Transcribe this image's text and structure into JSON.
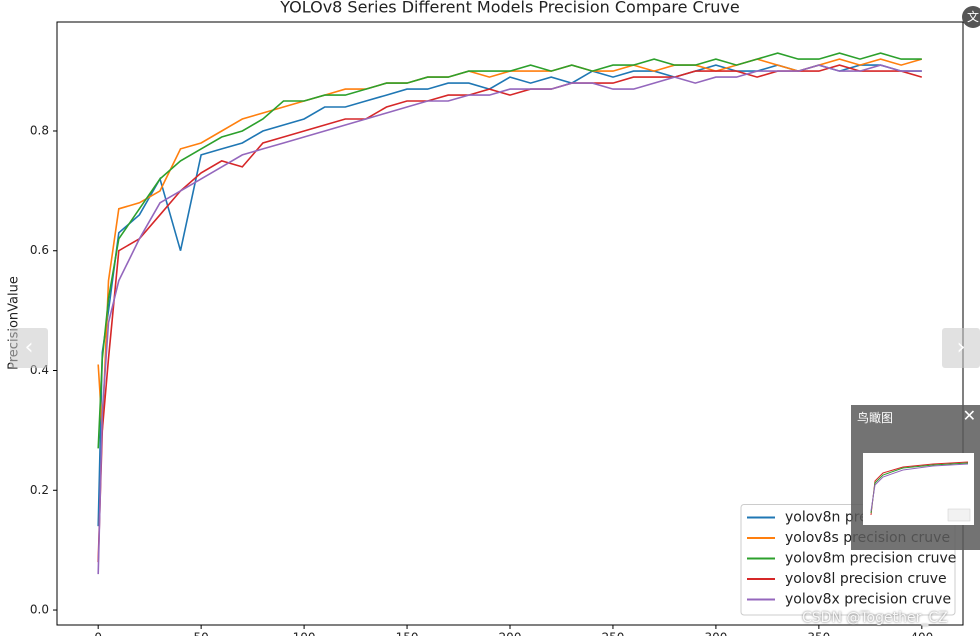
{
  "chart_data": {
    "type": "line",
    "title": "YOLOv8 Series Different Models Precision Compare Cruve",
    "y_label": "PrecisionValue",
    "x": [
      0,
      2,
      5,
      10,
      20,
      30,
      40,
      50,
      60,
      70,
      80,
      90,
      100,
      110,
      120,
      130,
      140,
      150,
      160,
      170,
      180,
      190,
      200,
      210,
      220,
      230,
      240,
      250,
      260,
      270,
      280,
      290,
      300,
      310,
      320,
      330,
      340,
      350,
      360,
      370,
      380,
      390,
      400
    ],
    "series": [
      {
        "name": "yolov8n precision cruve",
        "color": "#1f77b4",
        "values": [
          0.14,
          0.43,
          0.5,
          0.63,
          0.66,
          0.72,
          0.6,
          0.76,
          0.77,
          0.78,
          0.8,
          0.81,
          0.82,
          0.84,
          0.84,
          0.85,
          0.86,
          0.87,
          0.87,
          0.88,
          0.88,
          0.87,
          0.89,
          0.88,
          0.89,
          0.88,
          0.9,
          0.89,
          0.9,
          0.9,
          0.89,
          0.9,
          0.91,
          0.9,
          0.9,
          0.91,
          0.9,
          0.91,
          0.9,
          0.91,
          0.91,
          0.9,
          0.9
        ]
      },
      {
        "name": "yolov8s precision cruve",
        "color": "#ff7f0e",
        "values": [
          0.41,
          0.3,
          0.55,
          0.67,
          0.68,
          0.7,
          0.77,
          0.78,
          0.8,
          0.82,
          0.83,
          0.84,
          0.85,
          0.86,
          0.87,
          0.87,
          0.88,
          0.88,
          0.89,
          0.89,
          0.9,
          0.89,
          0.9,
          0.9,
          0.9,
          0.91,
          0.9,
          0.9,
          0.91,
          0.9,
          0.91,
          0.91,
          0.9,
          0.91,
          0.92,
          0.91,
          0.9,
          0.91,
          0.92,
          0.91,
          0.92,
          0.91,
          0.92
        ]
      },
      {
        "name": "yolov8m precision cruve",
        "color": "#2ca02c",
        "values": [
          0.27,
          0.42,
          0.52,
          0.62,
          0.67,
          0.72,
          0.75,
          0.77,
          0.79,
          0.8,
          0.82,
          0.85,
          0.85,
          0.86,
          0.86,
          0.87,
          0.88,
          0.88,
          0.89,
          0.89,
          0.9,
          0.9,
          0.9,
          0.91,
          0.9,
          0.91,
          0.9,
          0.91,
          0.91,
          0.92,
          0.91,
          0.91,
          0.92,
          0.91,
          0.92,
          0.93,
          0.92,
          0.92,
          0.93,
          0.92,
          0.93,
          0.92,
          0.92
        ]
      },
      {
        "name": "yolov8l precision cruve",
        "color": "#d62728",
        "values": [
          0.08,
          0.3,
          0.42,
          0.6,
          0.62,
          0.66,
          0.7,
          0.73,
          0.75,
          0.74,
          0.78,
          0.79,
          0.8,
          0.81,
          0.82,
          0.82,
          0.84,
          0.85,
          0.85,
          0.86,
          0.86,
          0.87,
          0.86,
          0.87,
          0.87,
          0.88,
          0.88,
          0.88,
          0.89,
          0.89,
          0.89,
          0.9,
          0.9,
          0.9,
          0.89,
          0.9,
          0.9,
          0.9,
          0.91,
          0.9,
          0.9,
          0.9,
          0.89
        ]
      },
      {
        "name": "yolov8x precision cruve",
        "color": "#9467bd",
        "values": [
          0.06,
          0.33,
          0.48,
          0.55,
          0.62,
          0.68,
          0.7,
          0.72,
          0.74,
          0.76,
          0.77,
          0.78,
          0.79,
          0.8,
          0.81,
          0.82,
          0.83,
          0.84,
          0.85,
          0.85,
          0.86,
          0.86,
          0.87,
          0.87,
          0.87,
          0.88,
          0.88,
          0.87,
          0.87,
          0.88,
          0.89,
          0.88,
          0.89,
          0.89,
          0.9,
          0.9,
          0.9,
          0.91,
          0.9,
          0.9,
          0.91,
          0.9,
          0.9
        ]
      }
    ],
    "xlim": [
      -20,
      420
    ],
    "xticks": [
      0,
      50,
      100,
      150,
      200,
      250,
      300,
      350,
      400
    ],
    "ylim": [
      -0.025,
      0.982
    ],
    "yticks": [
      {
        "value": 0,
        "label": "0.0"
      },
      0.2,
      0.4,
      0.6,
      0.8
    ],
    "legend": "lower right"
  },
  "ui": {
    "bird_view_title": "鸟瞰图",
    "watermark": "CSDN @Together_CZ",
    "translate_icon": "文"
  }
}
